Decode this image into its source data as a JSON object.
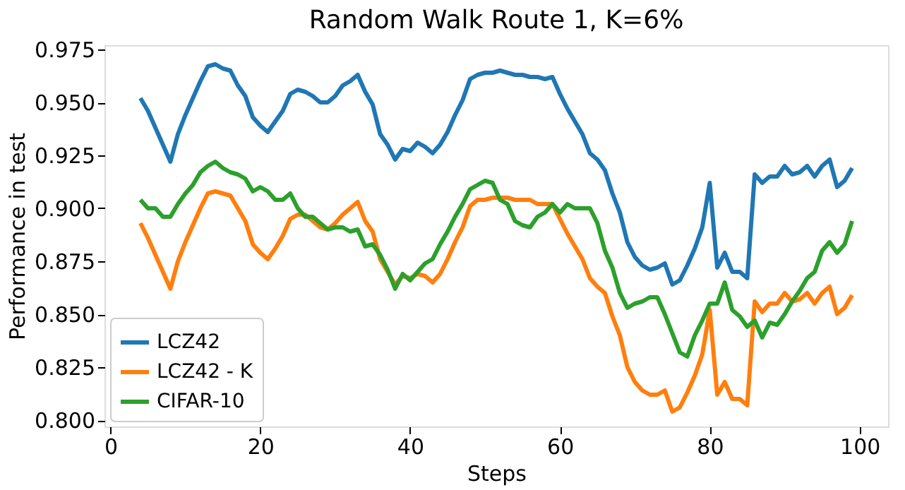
{
  "chart_data": {
    "type": "line",
    "title": "Random Walk Route 1, K=6%",
    "xlabel": "Steps",
    "ylabel": "Performance in test",
    "x": [
      4,
      5,
      6,
      7,
      8,
      9,
      10,
      11,
      12,
      13,
      14,
      15,
      16,
      17,
      18,
      19,
      20,
      21,
      22,
      23,
      24,
      25,
      26,
      27,
      28,
      29,
      30,
      31,
      32,
      33,
      34,
      35,
      36,
      37,
      38,
      39,
      40,
      41,
      42,
      43,
      44,
      45,
      46,
      47,
      48,
      49,
      50,
      51,
      52,
      53,
      54,
      55,
      56,
      57,
      58,
      59,
      60,
      61,
      62,
      63,
      64,
      65,
      66,
      67,
      68,
      69,
      70,
      71,
      72,
      73,
      74,
      75,
      76,
      77,
      78,
      79,
      80,
      81,
      82,
      83,
      84,
      85,
      86,
      87,
      88,
      89,
      90,
      91,
      92,
      93,
      94,
      95,
      96,
      97,
      98,
      99
    ],
    "series": [
      {
        "name": "LCZ42",
        "color": "#1f77b4",
        "values": [
          0.952,
          0.946,
          0.938,
          0.93,
          0.922,
          0.935,
          0.944,
          0.952,
          0.96,
          0.967,
          0.968,
          0.966,
          0.965,
          0.958,
          0.953,
          0.943,
          0.939,
          0.936,
          0.941,
          0.946,
          0.954,
          0.956,
          0.955,
          0.953,
          0.95,
          0.95,
          0.953,
          0.958,
          0.96,
          0.963,
          0.955,
          0.949,
          0.935,
          0.93,
          0.923,
          0.928,
          0.927,
          0.931,
          0.929,
          0.926,
          0.93,
          0.936,
          0.944,
          0.951,
          0.961,
          0.963,
          0.964,
          0.964,
          0.965,
          0.964,
          0.963,
          0.963,
          0.962,
          0.962,
          0.961,
          0.962,
          0.954,
          0.947,
          0.941,
          0.935,
          0.926,
          0.923,
          0.918,
          0.907,
          0.898,
          0.884,
          0.877,
          0.873,
          0.871,
          0.872,
          0.874,
          0.864,
          0.866,
          0.873,
          0.881,
          0.891,
          0.912,
          0.872,
          0.879,
          0.87,
          0.87,
          0.867,
          0.916,
          0.912,
          0.915,
          0.915,
          0.92,
          0.916,
          0.917,
          0.92,
          0.915,
          0.92,
          0.923,
          0.91,
          0.913,
          0.919
        ]
      },
      {
        "name": "LCZ42 - K",
        "color": "#ff7f0e",
        "values": [
          0.893,
          0.886,
          0.878,
          0.87,
          0.862,
          0.875,
          0.884,
          0.892,
          0.9,
          0.907,
          0.908,
          0.907,
          0.906,
          0.9,
          0.894,
          0.883,
          0.879,
          0.876,
          0.881,
          0.887,
          0.895,
          0.897,
          0.897,
          0.894,
          0.891,
          0.89,
          0.893,
          0.897,
          0.9,
          0.903,
          0.894,
          0.889,
          0.876,
          0.87,
          0.864,
          0.868,
          0.867,
          0.869,
          0.868,
          0.865,
          0.869,
          0.876,
          0.884,
          0.891,
          0.901,
          0.904,
          0.904,
          0.905,
          0.905,
          0.905,
          0.904,
          0.904,
          0.904,
          0.902,
          0.902,
          0.902,
          0.895,
          0.888,
          0.882,
          0.876,
          0.867,
          0.863,
          0.86,
          0.849,
          0.84,
          0.825,
          0.818,
          0.814,
          0.812,
          0.812,
          0.814,
          0.804,
          0.806,
          0.813,
          0.821,
          0.831,
          0.852,
          0.812,
          0.818,
          0.81,
          0.81,
          0.807,
          0.856,
          0.851,
          0.855,
          0.855,
          0.86,
          0.856,
          0.857,
          0.86,
          0.855,
          0.86,
          0.863,
          0.85,
          0.853,
          0.859
        ]
      },
      {
        "name": "CIFAR-10",
        "color": "#2ca02c",
        "values": [
          0.904,
          0.9,
          0.9,
          0.896,
          0.896,
          0.902,
          0.907,
          0.911,
          0.917,
          0.92,
          0.922,
          0.919,
          0.917,
          0.916,
          0.914,
          0.908,
          0.91,
          0.908,
          0.904,
          0.904,
          0.907,
          0.9,
          0.896,
          0.896,
          0.893,
          0.89,
          0.891,
          0.891,
          0.889,
          0.89,
          0.882,
          0.883,
          0.878,
          0.871,
          0.862,
          0.869,
          0.866,
          0.87,
          0.874,
          0.876,
          0.883,
          0.889,
          0.896,
          0.902,
          0.909,
          0.911,
          0.913,
          0.912,
          0.904,
          0.902,
          0.894,
          0.892,
          0.891,
          0.896,
          0.898,
          0.902,
          0.898,
          0.902,
          0.9,
          0.9,
          0.9,
          0.893,
          0.88,
          0.872,
          0.86,
          0.853,
          0.855,
          0.856,
          0.858,
          0.858,
          0.85,
          0.841,
          0.832,
          0.83,
          0.84,
          0.847,
          0.855,
          0.855,
          0.865,
          0.852,
          0.849,
          0.844,
          0.847,
          0.839,
          0.846,
          0.845,
          0.85,
          0.856,
          0.861,
          0.867,
          0.87,
          0.88,
          0.884,
          0.879,
          0.883,
          0.894
        ]
      }
    ],
    "xlim": [
      -0.8,
      103.8
    ],
    "xticks": [
      0,
      20,
      40,
      60,
      80,
      100
    ],
    "ylim": [
      0.797,
      0.977
    ],
    "yticks": [
      {
        "value": 0.8,
        "label": "0.800"
      },
      {
        "value": 0.825,
        "label": "0.825"
      },
      {
        "value": 0.85,
        "label": "0.850"
      },
      {
        "value": 0.875,
        "label": "0.875"
      },
      {
        "value": 0.9,
        "label": "0.900"
      },
      {
        "value": 0.925,
        "label": "0.925"
      },
      {
        "value": 0.95,
        "label": "0.950"
      },
      {
        "value": 0.975,
        "label": "0.975"
      }
    ],
    "grid": false,
    "legend": "bottom left",
    "line_style": "solid",
    "marker": "none"
  }
}
